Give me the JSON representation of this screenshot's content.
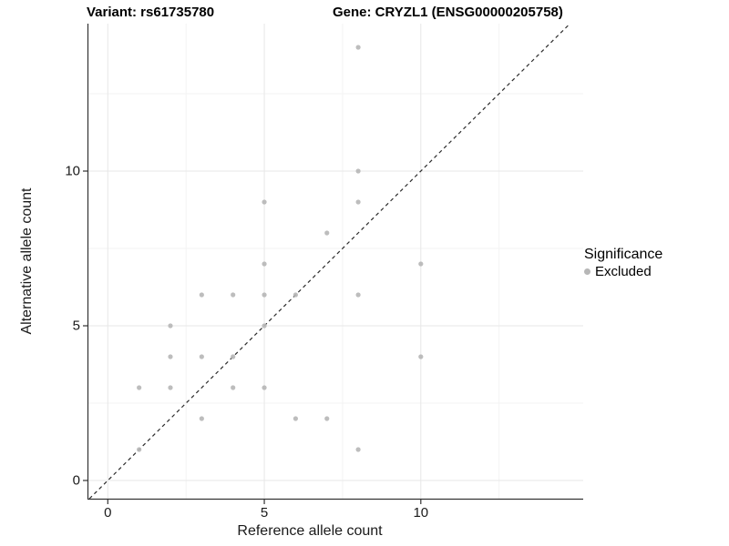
{
  "figure": {
    "title_left": "Variant: rs61735780",
    "title_right": "Gene: CRYZL1 (ENSG00000205758)"
  },
  "chart_data": {
    "type": "scatter",
    "title": "Variant: rs61735780 / Gene: CRYZL1 (ENSG00000205758)",
    "xlabel": "Reference allele count",
    "ylabel": "Alternative allele count",
    "xlim": [
      -0.65,
      15.2
    ],
    "ylim": [
      -0.6,
      14.8
    ],
    "x_ticks": [
      0,
      5,
      10
    ],
    "y_ticks": [
      0,
      5,
      10
    ],
    "grid_major": [
      0,
      5,
      10
    ],
    "grid_minor": [
      2.5,
      7.5,
      12.5
    ],
    "grid_on": true,
    "identity_line": {
      "style": "dashed",
      "equation": "y = x"
    },
    "legend": {
      "title": "Significance",
      "position": "right",
      "items": [
        {
          "label": "Excluded",
          "color": "#b7b7b7"
        }
      ]
    },
    "series": [
      {
        "name": "Excluded",
        "color": "#b7b7b7",
        "points": [
          [
            1,
            1
          ],
          [
            1,
            3
          ],
          [
            2,
            3
          ],
          [
            2,
            4
          ],
          [
            2,
            5
          ],
          [
            3,
            2
          ],
          [
            3,
            4
          ],
          [
            3,
            6
          ],
          [
            4,
            3
          ],
          [
            4,
            4
          ],
          [
            4,
            6
          ],
          [
            5,
            3
          ],
          [
            5,
            5
          ],
          [
            5,
            6
          ],
          [
            5,
            7
          ],
          [
            5,
            9
          ],
          [
            6,
            2
          ],
          [
            6,
            6
          ],
          [
            7,
            2
          ],
          [
            7,
            8
          ],
          [
            8,
            1
          ],
          [
            8,
            6
          ],
          [
            8,
            9
          ],
          [
            8,
            10
          ],
          [
            8,
            14
          ],
          [
            10,
            4
          ],
          [
            10,
            7
          ]
        ]
      }
    ],
    "colors": {
      "point": "#b7b7b7",
      "axis": "#333333",
      "grid_major": "#e7e7e7",
      "grid_minor": "#f3f3f3",
      "dashed_line": "#2b2b2b"
    }
  }
}
